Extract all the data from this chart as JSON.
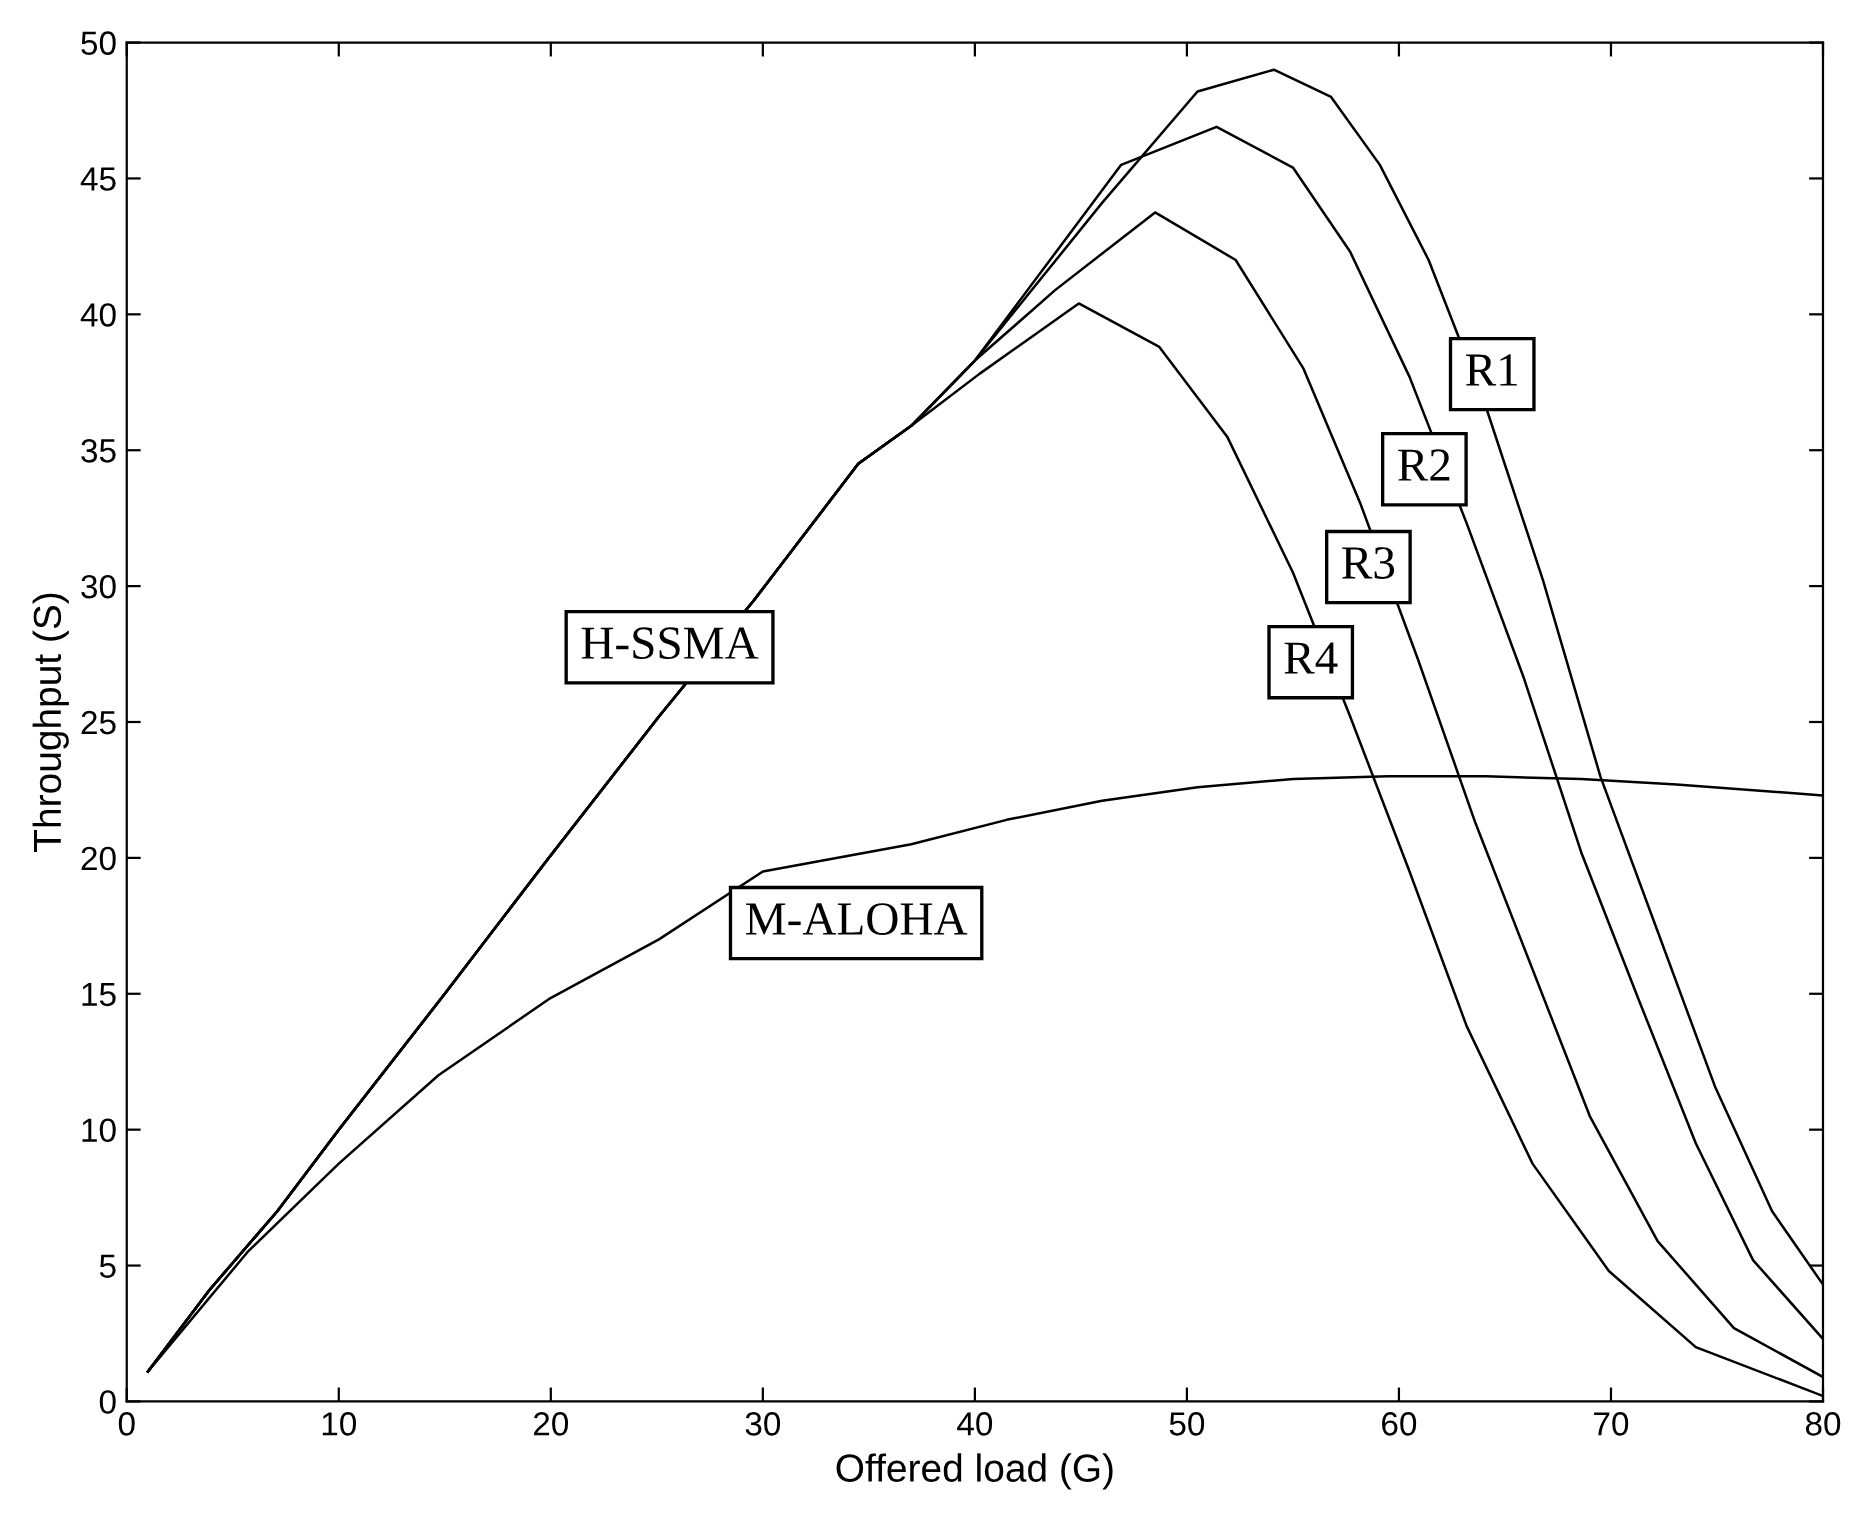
{
  "chart_data": {
    "type": "line",
    "xlabel": "Offered load (G)",
    "ylabel": "Throughput (S)",
    "xlim": [
      0,
      80
    ],
    "ylim": [
      0,
      50
    ],
    "xticks": [
      0,
      10,
      20,
      30,
      40,
      50,
      60,
      70,
      80
    ],
    "yticks": [
      0,
      5,
      10,
      15,
      20,
      25,
      30,
      35,
      40,
      45,
      50
    ],
    "grid": false,
    "legend": "right",
    "marker": "none",
    "line_style": "solid",
    "annotations": [
      "H-SSMA"
    ],
    "series": [
      {
        "name": "R1",
        "color": "#000000",
        "x": [
          1.0,
          3.9,
          7.1,
          10,
          15,
          19.9,
          25.1,
          29.6,
          34.5,
          37.0,
          40,
          46.0,
          50.5,
          54.1,
          56.8,
          59.1,
          61.4,
          64.1,
          66.8,
          69.5,
          72.2,
          74.9,
          77.6,
          80
        ],
        "values": [
          1.1,
          4.1,
          7.0,
          10.0,
          15.0,
          20.0,
          25.2,
          29.5,
          34.5,
          35.9,
          38.3,
          44.1,
          48.2,
          49.0,
          48.0,
          45.5,
          42.0,
          36.6,
          30.2,
          23.0,
          17.3,
          11.6,
          7.0,
          4.3
        ]
      },
      {
        "name": "R2",
        "color": "#000000",
        "x": [
          1.0,
          3.9,
          7.1,
          10,
          15,
          19.9,
          25.1,
          29.6,
          34.5,
          37.0,
          40,
          46.9,
          51.4,
          55.0,
          57.7,
          60.5,
          63.2,
          65.9,
          68.6,
          71.3,
          74.0,
          76.7,
          80
        ],
        "values": [
          1.1,
          4.1,
          7.0,
          10.0,
          15.0,
          20.0,
          25.2,
          29.5,
          34.5,
          35.9,
          38.3,
          45.5,
          46.9,
          45.4,
          42.3,
          37.7,
          32.3,
          26.6,
          20.2,
          14.8,
          9.5,
          5.2,
          2.3
        ]
      },
      {
        "name": "R3",
        "color": "#000000",
        "x": [
          1.0,
          3.9,
          7.1,
          10,
          15,
          19.9,
          25.1,
          29.6,
          34.5,
          37.0,
          40,
          43.8,
          48.5,
          52.3,
          55.5,
          58.2,
          60.9,
          63.6,
          66.3,
          69.0,
          72.2,
          75.8,
          80
        ],
        "values": [
          1.1,
          4.1,
          7.0,
          10.0,
          15.0,
          20.0,
          25.2,
          29.5,
          34.5,
          35.9,
          38.3,
          40.9,
          43.75,
          42.0,
          38.0,
          33.0,
          27.3,
          21.3,
          15.9,
          10.5,
          5.9,
          2.7,
          0.9
        ]
      },
      {
        "name": "R4",
        "color": "#000000",
        "x": [
          1.0,
          3.9,
          7.1,
          10,
          15,
          19.9,
          25.1,
          29.6,
          34.5,
          37.0,
          40.2,
          44.9,
          48.7,
          51.9,
          55.0,
          57.7,
          60.5,
          63.2,
          66.3,
          69.9,
          74.0,
          80
        ],
        "values": [
          1.1,
          4.1,
          7.0,
          10.0,
          15.0,
          20.0,
          25.2,
          29.5,
          34.5,
          35.9,
          37.8,
          40.4,
          38.8,
          35.5,
          30.5,
          25.2,
          19.5,
          13.8,
          8.75,
          4.8,
          2.0,
          0.2
        ]
      },
      {
        "name": "M-ALOHA",
        "color": "#000000",
        "x": [
          1.0,
          5.7,
          10,
          14.7,
          19.9,
          25.1,
          30.0,
          37.0,
          41.5,
          46.0,
          50.5,
          55.0,
          59.5,
          64.1,
          68.6,
          73.1,
          80
        ],
        "values": [
          1.1,
          5.5,
          8.75,
          12.0,
          14.8,
          17.0,
          19.5,
          20.5,
          21.4,
          22.1,
          22.6,
          22.9,
          23.0,
          23.0,
          22.9,
          22.7,
          22.3
        ]
      }
    ]
  }
}
